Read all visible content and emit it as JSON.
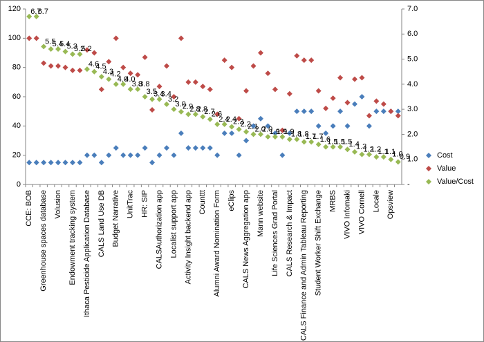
{
  "chart_data": {
    "type": "scatter",
    "categories": [
      "CCE: BOB",
      null,
      "Greenhouse spaces database",
      null,
      "Volusion",
      null,
      "Endowment tracking system",
      null,
      "Ithaca Pesticide Application Database",
      null,
      "CALS Land Use DB",
      null,
      "Budget Narrative",
      null,
      "UnitTrac",
      null,
      "HR: SIP",
      null,
      "CALSAuthorization app",
      null,
      "Localist support app",
      null,
      "Activity Insight backend app",
      null,
      "Counttt",
      null,
      "Alumni Award Nomination Form",
      null,
      "eClips",
      null,
      "CALS News Aggregation app",
      null,
      "Mann website",
      null,
      "Life Sciences Grad Portal",
      null,
      "CALS Research & Impact",
      null,
      "CALS Finance and Admin Tableau Reporting",
      null,
      "Student Worker Shift Exchange",
      null,
      "MRBS",
      null,
      "VIVO Infomaki",
      null,
      "VIVO Cornell",
      null,
      "Locale",
      null,
      "Opsview",
      null
    ],
    "series": [
      {
        "name": "Cost",
        "color": "#4a7ebb",
        "axis": "y",
        "values": [
          15,
          15,
          15,
          15,
          15,
          15,
          15,
          15,
          20,
          20,
          15,
          20,
          25,
          20,
          20,
          20,
          25,
          15,
          20,
          25,
          20,
          35,
          25,
          25,
          25,
          25,
          20,
          35,
          35,
          20,
          30,
          40,
          45,
          40,
          35,
          20,
          35,
          50,
          50,
          50,
          40,
          35,
          40,
          50,
          40,
          55,
          60,
          40,
          50,
          50,
          50,
          50
        ]
      },
      {
        "name": "Value",
        "color": "#be4b48",
        "axis": "y",
        "values": [
          100,
          100,
          83,
          81,
          81,
          80,
          78,
          78,
          92,
          90,
          65,
          84,
          100,
          80,
          76,
          75,
          87,
          51,
          67,
          81,
          60,
          100,
          70,
          70,
          67,
          65,
          48,
          85,
          80,
          45,
          64,
          81,
          90,
          76,
          65,
          37,
          62,
          88,
          85,
          85,
          64,
          52,
          59,
          73,
          56,
          72,
          73,
          47,
          57,
          55,
          50,
          47
        ]
      },
      {
        "name": "Value/Cost",
        "color": "#98b954",
        "axis": "y2",
        "values": [
          6.7,
          6.7,
          5.5,
          5.4,
          5.4,
          5.3,
          5.2,
          5.2,
          4.6,
          4.5,
          4.3,
          4.2,
          4.0,
          4.0,
          3.8,
          3.8,
          3.5,
          3.4,
          3.4,
          3.2,
          3.0,
          2.9,
          2.8,
          2.8,
          2.7,
          2.6,
          2.4,
          2.4,
          2.3,
          2.2,
          2.1,
          2.0,
          2.0,
          1.9,
          1.9,
          1.9,
          1.8,
          1.8,
          1.7,
          1.7,
          1.6,
          1.5,
          1.5,
          1.5,
          1.4,
          1.3,
          1.2,
          1.2,
          1.1,
          1.1,
          1.0,
          0.9
        ],
        "value_labels": [
          "6.7",
          "6.7",
          "5.5",
          "5.4",
          "5.4",
          "5.3",
          "5.2",
          "5.2",
          "4.6",
          "4.5",
          "4.3",
          "4.2",
          "4.0",
          "4.0",
          "3.8",
          "3.8",
          "3.5",
          "3.4",
          "3.4",
          "3.2",
          "3.0",
          "2.9",
          "2.8",
          "2.8",
          "2.7",
          "2.6",
          "2.4",
          "2.4",
          "2.3",
          "2.2",
          "2.1",
          "2.0",
          "2.0",
          "1.9",
          "1.9",
          "1.9",
          "1.8",
          "1.8",
          "1.7",
          "1.7",
          "1.6",
          "1.5",
          "1.5",
          "1.5",
          "1.4",
          "1.3",
          "1.2",
          "1.2",
          "1.1",
          "1.1",
          "1.0",
          "0.9"
        ]
      }
    ],
    "ylim": [
      0,
      120
    ],
    "yticks": [
      0,
      20,
      40,
      60,
      80,
      100,
      120
    ],
    "y2lim": [
      0,
      7
    ],
    "y2ticks": [
      {
        "value": 0,
        "label": "-"
      },
      {
        "value": 1,
        "label": "1.0"
      },
      {
        "value": 2,
        "label": "2.0"
      },
      {
        "value": 3,
        "label": "3.0"
      },
      {
        "value": 4,
        "label": "4.0"
      },
      {
        "value": 5,
        "label": "5.0"
      },
      {
        "value": 6,
        "label": "6.0"
      },
      {
        "value": 7,
        "label": "7.0"
      }
    ],
    "legend": "right"
  }
}
